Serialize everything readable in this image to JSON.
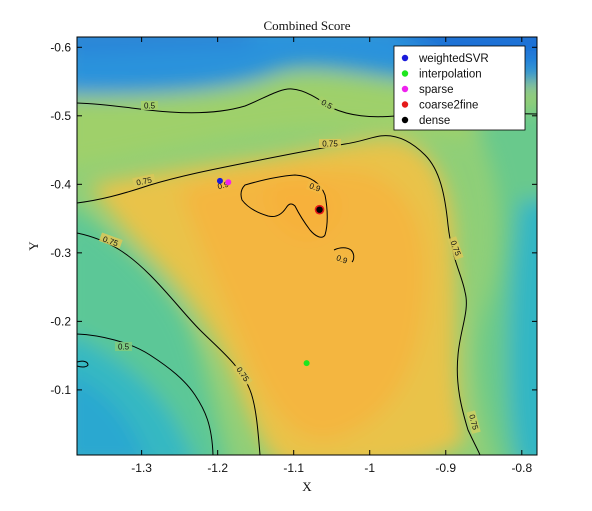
{
  "chart_data": {
    "type": "heatmap",
    "title": "Combined Score",
    "xlabel": "X",
    "ylabel": "Y",
    "xlim": [
      -1.385,
      -0.78
    ],
    "ylim": [
      -0.005,
      -0.615
    ],
    "y_reversed": true,
    "xticks": [
      -1.3,
      -1.2,
      -1.1,
      -1,
      -0.9,
      -0.8
    ],
    "xtick_labels": [
      "-1.3",
      "-1.2",
      "-1.1",
      "-1",
      "-0.9",
      "-0.8"
    ],
    "yticks": [
      -0.6,
      -0.5,
      -0.4,
      -0.3,
      -0.2,
      -0.1
    ],
    "ytick_labels": [
      "-0.6",
      "-0.5",
      "-0.4",
      "-0.3",
      "-0.2",
      "-0.1"
    ],
    "colormap": [
      "#1f6fd6",
      "#2aa6dc",
      "#39c4a3",
      "#9fd06a",
      "#e8c645",
      "#f5b73e"
    ],
    "grid": false,
    "contour_levels": [
      {
        "level": 0.5,
        "label": "0.5"
      },
      {
        "level": 0.75,
        "label": "0.75"
      },
      {
        "level": 0.9,
        "label": "0.9"
      }
    ],
    "legend_position": "top-right",
    "series": [
      {
        "name": "weightedSVR",
        "color": "#1a1adb",
        "x": -1.197,
        "y": -0.405
      },
      {
        "name": "interpolation",
        "color": "#1ee61e",
        "x": -1.083,
        "y": -0.139
      },
      {
        "name": "sparse",
        "color": "#ee22ee",
        "x": -1.186,
        "y": -0.403
      },
      {
        "name": "coarse2fine",
        "color": "#e41a1a",
        "x": -1.066,
        "y": -0.363
      },
      {
        "name": "dense",
        "color": "#000000",
        "x": -1.066,
        "y": -0.363
      }
    ]
  }
}
